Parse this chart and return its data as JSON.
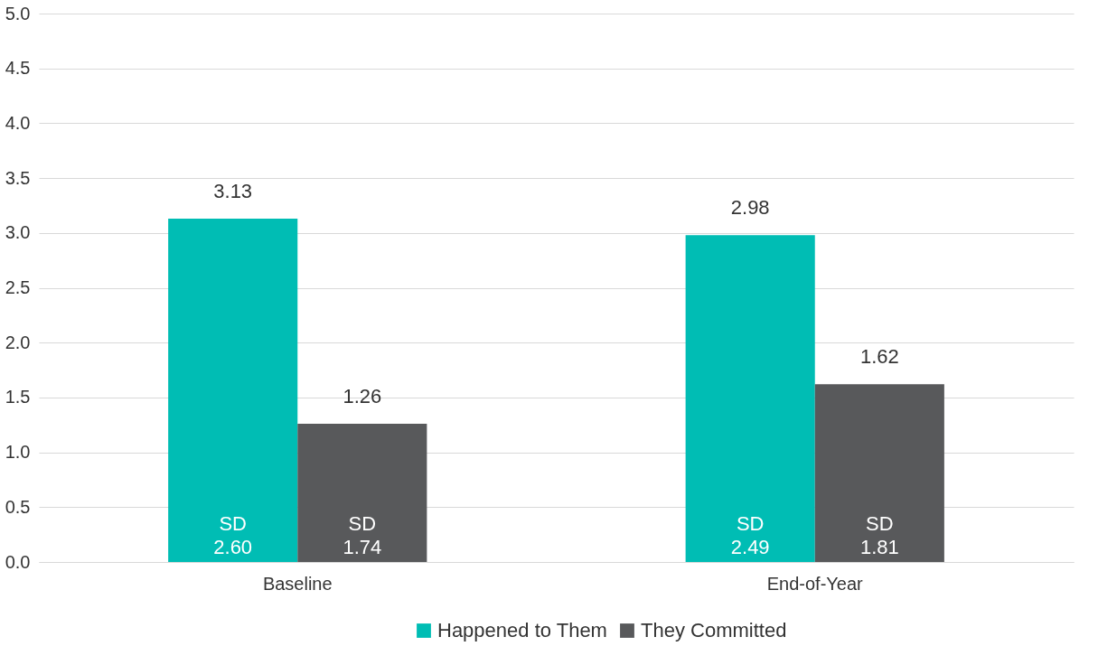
{
  "chart_data": {
    "type": "bar",
    "categories": [
      "Baseline",
      "End-of-Year"
    ],
    "series": [
      {
        "name": "Happened to Them",
        "color": "#00bdb4",
        "values": [
          3.13,
          2.98
        ]
      },
      {
        "name": "They Committed",
        "color": "#58595b",
        "values": [
          1.26,
          1.62
        ]
      }
    ],
    "ylim": [
      0,
      5
    ],
    "yticks": [
      {
        "value": 0,
        "label": "0.0"
      },
      0.5,
      {
        "value": 1,
        "label": "1.0"
      },
      1.5,
      {
        "value": 2,
        "label": "2.0"
      },
      2.5,
      {
        "value": 3,
        "label": "3.0"
      },
      3.5,
      {
        "value": 4,
        "label": "4.0"
      },
      4.5,
      {
        "value": 5,
        "label": "5.0"
      }
    ],
    "grid": "y",
    "legend": "bottom",
    "data_labels": true,
    "annotations": [
      {
        "text": "SD 2.60",
        "x": "Baseline",
        "y": 0.35
      },
      {
        "text": "SD 1.74",
        "x": "Baseline",
        "y": 0.35
      },
      {
        "text": "SD 2.49",
        "x": "End-of-Year",
        "y": 0.35
      },
      {
        "text": "SD 1.81",
        "x": "End-of-Year",
        "y": 0.35
      }
    ]
  }
}
